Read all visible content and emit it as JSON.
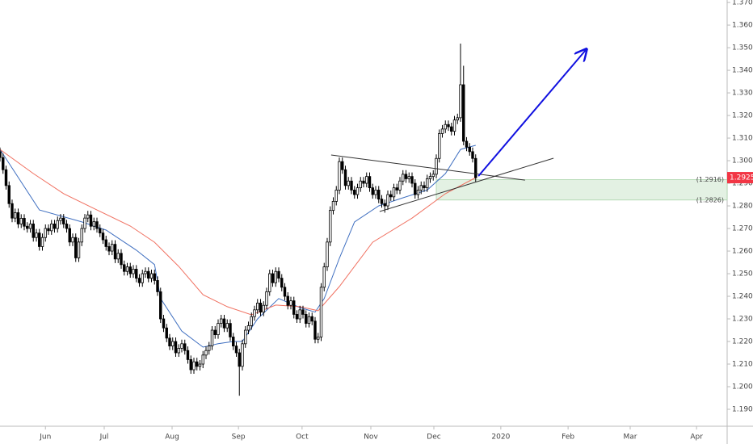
{
  "chart_data": {
    "type": "candlestick",
    "open": [
      1.304,
      1.3014,
      1.296,
      1.289,
      1.281,
      1.2746,
      1.277,
      1.272,
      1.2745,
      1.271,
      1.27,
      1.272,
      1.266,
      1.268,
      1.262,
      1.266,
      1.27,
      1.269,
      1.272,
      1.27,
      1.2735,
      1.2746,
      1.272,
      1.27,
      1.264,
      1.266,
      1.257,
      1.264,
      1.27,
      1.2746,
      1.276,
      1.271,
      1.273,
      1.27,
      1.268,
      1.265,
      1.262,
      1.26,
      1.263,
      1.2565,
      1.259,
      1.254,
      1.251,
      1.253,
      1.25,
      1.252,
      1.248,
      1.246,
      1.25,
      1.251,
      1.248,
      1.25,
      1.247,
      1.242,
      1.23,
      1.226,
      1.2215,
      1.218,
      1.22,
      1.215,
      1.217,
      1.219,
      1.216,
      1.212,
      1.2075,
      1.211,
      1.209,
      1.21,
      1.214,
      1.216,
      1.218,
      1.225,
      1.223,
      1.228,
      1.23,
      1.226,
      1.228,
      1.222,
      1.218,
      1.215,
      1.209,
      1.219,
      1.225,
      1.227,
      1.231,
      1.234,
      1.237,
      1.233,
      1.236,
      1.242,
      1.25,
      1.246,
      1.251,
      1.248,
      1.244,
      1.24,
      1.236,
      1.238,
      1.232,
      1.23,
      1.234,
      1.232,
      1.228,
      1.231,
      1.229,
      1.221,
      1.222,
      1.244,
      1.253,
      1.264,
      1.278,
      1.282,
      1.287,
      1.2996,
      1.296,
      1.289,
      1.291,
      1.287,
      1.285,
      1.288,
      1.291,
      1.29,
      1.293,
      1.288,
      1.285,
      1.287,
      1.283,
      1.281,
      1.28,
      1.285,
      1.284,
      1.288,
      1.287,
      1.291,
      1.294,
      1.292,
      1.293,
      1.29,
      1.285,
      1.287,
      1.289,
      1.288,
      1.292,
      1.293,
      1.294,
      1.301,
      1.312,
      1.314,
      1.316,
      1.315,
      1.313,
      1.318,
      1.319,
      1.3336,
      1.3086,
      1.306,
      1.304,
      1.301
    ],
    "high": [
      1.3058,
      1.3032,
      1.2978,
      1.2908,
      1.2828,
      1.2788,
      1.2788,
      1.2763,
      1.2763,
      1.2728,
      1.2738,
      1.2738,
      1.2698,
      1.2698,
      1.2678,
      1.2718,
      1.2718,
      1.2738,
      1.2738,
      1.2753,
      1.2764,
      1.2764,
      1.2738,
      1.2718,
      1.2678,
      1.2678,
      1.2658,
      1.2718,
      1.2764,
      1.2778,
      1.2778,
      1.2748,
      1.2748,
      1.2718,
      1.2698,
      1.2668,
      1.2638,
      1.2648,
      1.2648,
      1.2608,
      1.2608,
      1.2558,
      1.2548,
      1.2548,
      1.2538,
      1.2538,
      1.2498,
      1.2518,
      1.2528,
      1.2528,
      1.2518,
      1.2518,
      1.2488,
      1.2438,
      1.2318,
      1.2278,
      1.2233,
      1.2218,
      1.2218,
      1.2188,
      1.2208,
      1.2208,
      1.2178,
      1.2138,
      1.2128,
      1.2128,
      1.2118,
      1.2158,
      1.2178,
      1.2198,
      1.2268,
      1.2268,
      1.2298,
      1.2318,
      1.2318,
      1.2298,
      1.2298,
      1.2238,
      1.2198,
      1.2168,
      1.2208,
      1.2268,
      1.2288,
      1.2328,
      1.2358,
      1.2388,
      1.2388,
      1.2378,
      1.2438,
      1.2518,
      1.2518,
      1.2528,
      1.2528,
      1.2498,
      1.2458,
      1.2418,
      1.2398,
      1.2398,
      1.2338,
      1.2358,
      1.2358,
      1.2338,
      1.2328,
      1.2328,
      1.2308,
      1.2238,
      1.2458,
      1.2548,
      1.2658,
      1.2798,
      1.2838,
      1.2888,
      1.3014,
      1.3014,
      1.2978,
      1.2928,
      1.2928,
      1.2888,
      1.2898,
      1.2928,
      1.2928,
      1.2948,
      1.2948,
      1.2898,
      1.2888,
      1.2888,
      1.2848,
      1.2828,
      1.2868,
      1.2868,
      1.2898,
      1.2898,
      1.2928,
      1.2958,
      1.2958,
      1.2948,
      1.2948,
      1.2918,
      1.2888,
      1.2908,
      1.2908,
      1.2938,
      1.2948,
      1.2958,
      1.3028,
      1.3138,
      1.3158,
      1.3178,
      1.3178,
      1.3168,
      1.3198,
      1.3208,
      1.3518,
      1.342,
      1.3104,
      1.3078,
      1.3058,
      1.3028
    ],
    "low": [
      1.2996,
      1.2942,
      1.2872,
      1.2792,
      1.2728,
      1.2728,
      1.2702,
      1.2702,
      1.2692,
      1.2682,
      1.2682,
      1.2642,
      1.2642,
      1.2602,
      1.2602,
      1.2642,
      1.2672,
      1.2672,
      1.2682,
      1.2682,
      1.2717,
      1.2702,
      1.2682,
      1.2622,
      1.2622,
      1.2552,
      1.2552,
      1.2622,
      1.2682,
      1.2728,
      1.2692,
      1.2692,
      1.2682,
      1.2662,
      1.2632,
      1.2602,
      1.2582,
      1.2582,
      1.2547,
      1.2547,
      1.2522,
      1.2492,
      1.2492,
      1.2482,
      1.2482,
      1.2462,
      1.2442,
      1.2442,
      1.2482,
      1.2462,
      1.2462,
      1.2452,
      1.2402,
      1.2282,
      1.2242,
      1.2197,
      1.2162,
      1.2162,
      1.2132,
      1.2132,
      1.2152,
      1.2142,
      1.2102,
      1.2057,
      1.2057,
      1.2072,
      1.2072,
      1.2082,
      1.2122,
      1.2142,
      1.2162,
      1.2212,
      1.2212,
      1.2262,
      1.2242,
      1.2242,
      1.2202,
      1.2162,
      1.2132,
      1.196,
      1.2072,
      1.2172,
      1.2232,
      1.2252,
      1.2292,
      1.2322,
      1.2312,
      1.2312,
      1.2342,
      1.2402,
      1.2442,
      1.2442,
      1.2462,
      1.2422,
      1.2382,
      1.2342,
      1.2342,
      1.2302,
      1.2282,
      1.2282,
      1.2302,
      1.2262,
      1.2262,
      1.2272,
      1.2192,
      1.2192,
      1.2202,
      1.2422,
      1.2512,
      1.2622,
      1.2762,
      1.2802,
      1.2852,
      1.2942,
      1.2872,
      1.2872,
      1.2852,
      1.2832,
      1.2832,
      1.2862,
      1.2882,
      1.2882,
      1.2862,
      1.2832,
      1.2832,
      1.2812,
      1.2792,
      1.277,
      1.2782,
      1.2822,
      1.2822,
      1.2852,
      1.2852,
      1.2892,
      1.2902,
      1.2902,
      1.2882,
      1.2832,
      1.2832,
      1.2852,
      1.2862,
      1.2862,
      1.2902,
      1.2912,
      1.2922,
      1.2992,
      1.3102,
      1.3122,
      1.3132,
      1.3112,
      1.3112,
      1.3162,
      1.3172,
      1.3068,
      1.3042,
      1.3022,
      1.2992,
      1.2907
    ],
    "close": [
      1.3014,
      1.296,
      1.289,
      1.281,
      1.2746,
      1.277,
      1.272,
      1.2745,
      1.271,
      1.27,
      1.272,
      1.266,
      1.268,
      1.262,
      1.266,
      1.27,
      1.269,
      1.272,
      1.27,
      1.2735,
      1.2746,
      1.272,
      1.27,
      1.264,
      1.266,
      1.257,
      1.264,
      1.27,
      1.2746,
      1.276,
      1.271,
      1.273,
      1.27,
      1.268,
      1.265,
      1.262,
      1.26,
      1.263,
      1.2565,
      1.259,
      1.254,
      1.251,
      1.253,
      1.25,
      1.252,
      1.248,
      1.246,
      1.25,
      1.251,
      1.248,
      1.25,
      1.247,
      1.242,
      1.23,
      1.226,
      1.2215,
      1.218,
      1.22,
      1.215,
      1.217,
      1.219,
      1.216,
      1.212,
      1.2075,
      1.211,
      1.209,
      1.21,
      1.214,
      1.216,
      1.218,
      1.225,
      1.223,
      1.228,
      1.23,
      1.226,
      1.228,
      1.222,
      1.218,
      1.215,
      1.209,
      1.219,
      1.225,
      1.227,
      1.231,
      1.234,
      1.237,
      1.233,
      1.236,
      1.242,
      1.25,
      1.246,
      1.251,
      1.248,
      1.244,
      1.24,
      1.236,
      1.238,
      1.232,
      1.23,
      1.234,
      1.232,
      1.228,
      1.231,
      1.229,
      1.221,
      1.222,
      1.244,
      1.253,
      1.264,
      1.278,
      1.282,
      1.287,
      1.2996,
      1.296,
      1.289,
      1.291,
      1.287,
      1.285,
      1.288,
      1.291,
      1.29,
      1.293,
      1.288,
      1.285,
      1.287,
      1.283,
      1.281,
      1.28,
      1.285,
      1.284,
      1.288,
      1.287,
      1.291,
      1.294,
      1.292,
      1.293,
      1.29,
      1.285,
      1.287,
      1.289,
      1.288,
      1.292,
      1.293,
      1.294,
      1.301,
      1.312,
      1.314,
      1.316,
      1.315,
      1.313,
      1.318,
      1.319,
      1.3336,
      1.3086,
      1.306,
      1.304,
      1.301,
      1.2925
    ],
    "up_color": "#ffffff",
    "down_color": "#000000",
    "moving_averages": [
      {
        "color": "#3f6fc0",
        "x": [
          0,
          13,
          27,
          35,
          45,
          51,
          53,
          60,
          67,
          72,
          77,
          80,
          85,
          92,
          99,
          104,
          107,
          112,
          117,
          125,
          133,
          141,
          147,
          152,
          157
        ],
        "values": [
          1.305,
          1.2782,
          1.2729,
          1.2693,
          1.2604,
          1.254,
          1.239,
          1.2246,
          1.2175,
          1.219,
          1.22,
          1.22,
          1.23,
          1.239,
          1.235,
          1.233,
          1.239,
          1.2568,
          1.2729,
          1.28,
          1.2836,
          1.287,
          1.2943,
          1.305,
          1.3068
        ]
      },
      {
        "color": "#f07060",
        "x": [
          0,
          11,
          21,
          32,
          43,
          51,
          59,
          67,
          75,
          83,
          91,
          99,
          105,
          112,
          123,
          136,
          147,
          157
        ],
        "values": [
          1.305,
          1.2943,
          1.2854,
          1.2782,
          1.2711,
          1.2639,
          1.2532,
          1.2407,
          1.2354,
          1.2318,
          1.2361,
          1.2354,
          1.2336,
          1.2443,
          1.2639,
          1.2746,
          1.2854,
          1.2925
        ]
      }
    ],
    "drawings": [
      {
        "color": "#333333",
        "x": [
          109.3,
          173.3
        ],
        "y": [
          1.3025,
          1.2914
        ]
      },
      {
        "color": "#333333",
        "x": [
          125.3,
          182.7
        ],
        "y": [
          1.2775,
          1.3011
        ]
      },
      {
        "color": "#1010e0",
        "x": [
          157.9,
          193.3
        ],
        "y": [
          1.2932,
          1.3489
        ],
        "arrow": true
      }
    ],
    "zone": {
      "values": [
        1.2916,
        1.2826
      ],
      "value_labels": [
        "(1.2916)",
        "(1.2826)"
      ],
      "x_start": 144,
      "color": "#e3f1e3"
    },
    "last_price": 1.2925,
    "last_price_color": "#f23645",
    "xlim": [
      0,
      240
    ],
    "ylim": [
      1.1825,
      1.3711
    ],
    "xticks": [
      {
        "value": 15,
        "label": "Jun"
      },
      {
        "value": 34.4,
        "label": "Jul"
      },
      {
        "value": 56.8,
        "label": "Aug"
      },
      {
        "value": 78.7,
        "label": "Sep"
      },
      {
        "value": 99.7,
        "label": "Oct"
      },
      {
        "value": 122.4,
        "label": "Nov"
      },
      {
        "value": 143.2,
        "label": "Dec"
      },
      {
        "value": 165.3,
        "label": "2020"
      },
      {
        "value": 187.5,
        "label": "Feb"
      },
      {
        "value": 208,
        "label": "Mar"
      },
      {
        "value": 229.9,
        "label": "Apr"
      }
    ],
    "yticks": [
      {
        "value": 1.19,
        "label": "1.1900"
      },
      {
        "value": 1.2,
        "label": "1.2000"
      },
      {
        "value": 1.21,
        "label": "1.2100"
      },
      {
        "value": 1.22,
        "label": "1.2200"
      },
      {
        "value": 1.23,
        "label": "1.2300"
      },
      {
        "value": 1.24,
        "label": "1.2400"
      },
      {
        "value": 1.25,
        "label": "1.2500"
      },
      {
        "value": 1.26,
        "label": "1.2600"
      },
      {
        "value": 1.27,
        "label": "1.2700"
      },
      {
        "value": 1.28,
        "label": "1.2800"
      },
      {
        "value": 1.29,
        "label": "1.2900"
      },
      {
        "value": 1.3,
        "label": "1.3000"
      },
      {
        "value": 1.31,
        "label": "1.3100"
      },
      {
        "value": 1.32,
        "label": "1.3200"
      },
      {
        "value": 1.33,
        "label": "1.3300"
      },
      {
        "value": 1.34,
        "label": "1.3400"
      },
      {
        "value": 1.35,
        "label": "1.3500"
      },
      {
        "value": 1.36,
        "label": "1.3600"
      },
      {
        "value": 1.37,
        "label": "1.3700"
      }
    ]
  }
}
